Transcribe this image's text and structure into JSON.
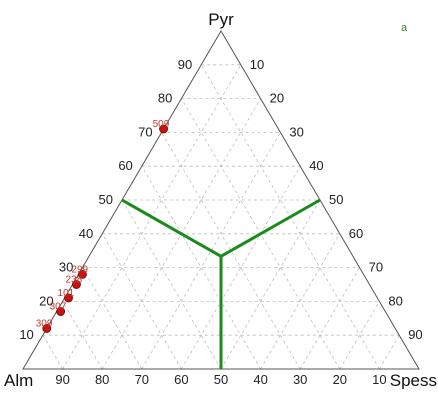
{
  "panel_label": "a",
  "colors": {
    "frame": "#555555",
    "grid": "#bdbdbd",
    "divider": "#1a8a1a",
    "point": "#cc1111",
    "point_stroke": "#7a0000",
    "point_label": "#c0392b",
    "panel_label": "#2e8b2e"
  },
  "chart_data": {
    "type": "scatter",
    "subtype": "ternary",
    "apex_labels": {
      "top": "Pyr",
      "left": "Alm",
      "right": "Spess"
    },
    "grid": true,
    "grid_step": 10,
    "tick_labels": [
      "10",
      "20",
      "30",
      "40",
      "50",
      "60",
      "70",
      "80",
      "90"
    ],
    "divider_lines_meet_at": {
      "Pyr": 33.3,
      "Alm": 33.3,
      "Spess": 33.3
    },
    "points": [
      {
        "label": "509",
        "Pyr": 71,
        "Alm": 29,
        "Spess": 0
      },
      {
        "label": "299",
        "Pyr": 28,
        "Alm": 71,
        "Spess": 1
      },
      {
        "label": "238",
        "Pyr": 25,
        "Alm": 74,
        "Spess": 1
      },
      {
        "label": "101",
        "Pyr": 21,
        "Alm": 78,
        "Spess": 1
      },
      {
        "label": "307",
        "Pyr": 17,
        "Alm": 82,
        "Spess": 1
      },
      {
        "label": "309",
        "Pyr": 12,
        "Alm": 88,
        "Spess": 0
      }
    ]
  }
}
